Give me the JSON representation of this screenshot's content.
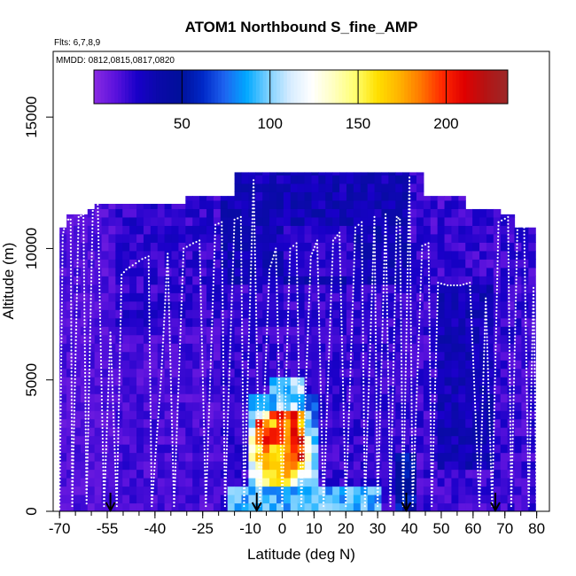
{
  "chart_data": {
    "type": "heatmap",
    "title": "ATOM1 Northbound S_fine_AMP",
    "flights_label": "Flts: 6,7,8,9",
    "dates_label": "MMDD: 0812,0815,0817,0820",
    "xlabel": "Latitude (deg N)",
    "ylabel": "Altitude (m)",
    "xlim": [
      -72,
      84
    ],
    "ylim": [
      0,
      17500
    ],
    "x_ticks": [
      -70,
      -55,
      -40,
      -25,
      -10,
      0,
      10,
      20,
      30,
      40,
      50,
      60,
      70,
      80
    ],
    "y_ticks": [
      0,
      5000,
      10000,
      15000
    ],
    "colorbar": {
      "min": 0,
      "max": 235,
      "ticks": [
        50,
        100,
        150,
        200
      ],
      "colors": [
        "#8a2be2",
        "#5a12dd",
        "#1800c8",
        "#0a0aa8",
        "#00109a",
        "#0028c8",
        "#1e64f0",
        "#00a8ff",
        "#7cd0ff",
        "#d6ecff",
        "#ffffff",
        "#ffffc0",
        "#ffff70",
        "#ffe000",
        "#ffb400",
        "#ff7800",
        "#ff2800",
        "#e00000",
        "#b41414",
        "#9c2828"
      ]
    },
    "profile_markers_lat": [
      -54,
      -8,
      39,
      67
    ],
    "grid": false,
    "legend": "colorbar-top"
  }
}
